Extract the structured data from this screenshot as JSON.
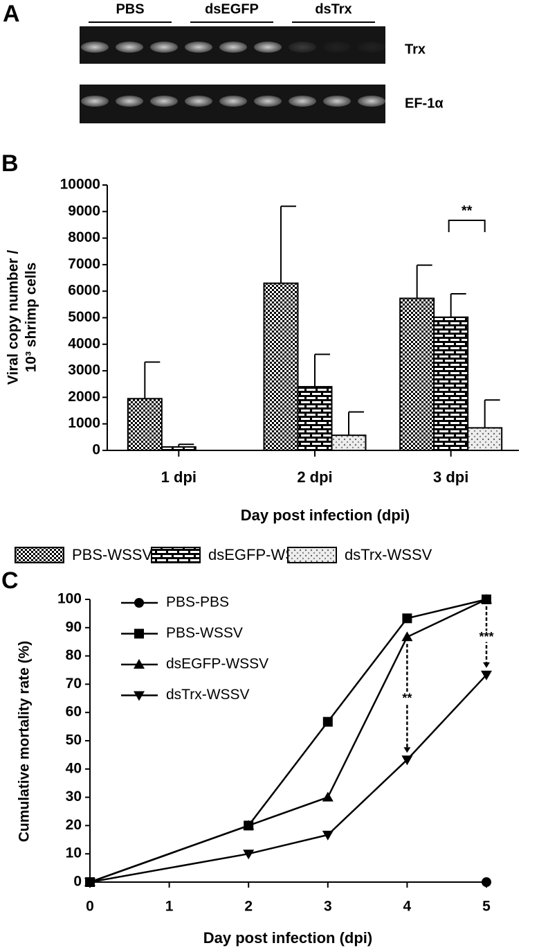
{
  "panel_a": {
    "label": "A",
    "groups": [
      "PBS",
      "dsEGFP",
      "dsTrx"
    ],
    "rows": [
      "Trx",
      "EF-1α"
    ]
  },
  "chart_data": [
    {
      "type": "bar",
      "panel_label": "B",
      "ylabel": [
        "Viral copy number /",
        "10³ shrimp cells"
      ],
      "xlabel": "Day post infection (dpi)",
      "categories": [
        "1 dpi",
        "2 dpi",
        "3 dpi"
      ],
      "series": [
        {
          "name": "PBS-WSSV",
          "pattern": "checker",
          "color": "#000000",
          "values": [
            1950,
            6300,
            5730
          ],
          "errors": [
            1380,
            2900,
            1250
          ]
        },
        {
          "name": "dsEGFP-WSSV",
          "pattern": "brick",
          "color": "#000000",
          "values": [
            130,
            2400,
            5020
          ],
          "errors": [
            100,
            1220,
            880
          ]
        },
        {
          "name": "dsTrx-WSSV",
          "pattern": "dots",
          "color": "#000000",
          "values": [
            null,
            570,
            850
          ],
          "errors": [
            null,
            880,
            1050
          ]
        }
      ],
      "ylim": [
        0,
        10000
      ],
      "yticks": [
        0,
        1000,
        2000,
        3000,
        4000,
        5000,
        6000,
        7000,
        8000,
        9000,
        10000
      ],
      "annotation": "**"
    },
    {
      "type": "line",
      "panel_label": "C",
      "ylabel": "Cumulative mortality rate (%)",
      "xlabel": "Day post infection (dpi)",
      "x": [
        0,
        2,
        3,
        4,
        5
      ],
      "series": [
        {
          "name": "PBS-PBS",
          "marker": "circle",
          "color": "#000000",
          "values": [
            0,
            null,
            null,
            null,
            0
          ]
        },
        {
          "name": "PBS-WSSV",
          "marker": "square",
          "color": "#000000",
          "values": [
            0,
            20,
            56.7,
            93.3,
            100
          ]
        },
        {
          "name": "dsEGFP-WSSV",
          "marker": "triangle",
          "color": "#000000",
          "values": [
            0,
            20,
            30,
            86.7,
            100
          ]
        },
        {
          "name": "dsTrx-WSSV",
          "marker": "triangle-down",
          "color": "#000000",
          "values": [
            0,
            10,
            16.7,
            43.3,
            73.3
          ]
        }
      ],
      "xlim": [
        0,
        5
      ],
      "xticks": [
        0,
        1,
        2,
        3,
        4,
        5
      ],
      "ylim": [
        0,
        100
      ],
      "yticks": [
        0,
        10,
        20,
        30,
        40,
        50,
        60,
        70,
        80,
        90,
        100
      ],
      "annotations": [
        "**",
        "***"
      ]
    }
  ]
}
